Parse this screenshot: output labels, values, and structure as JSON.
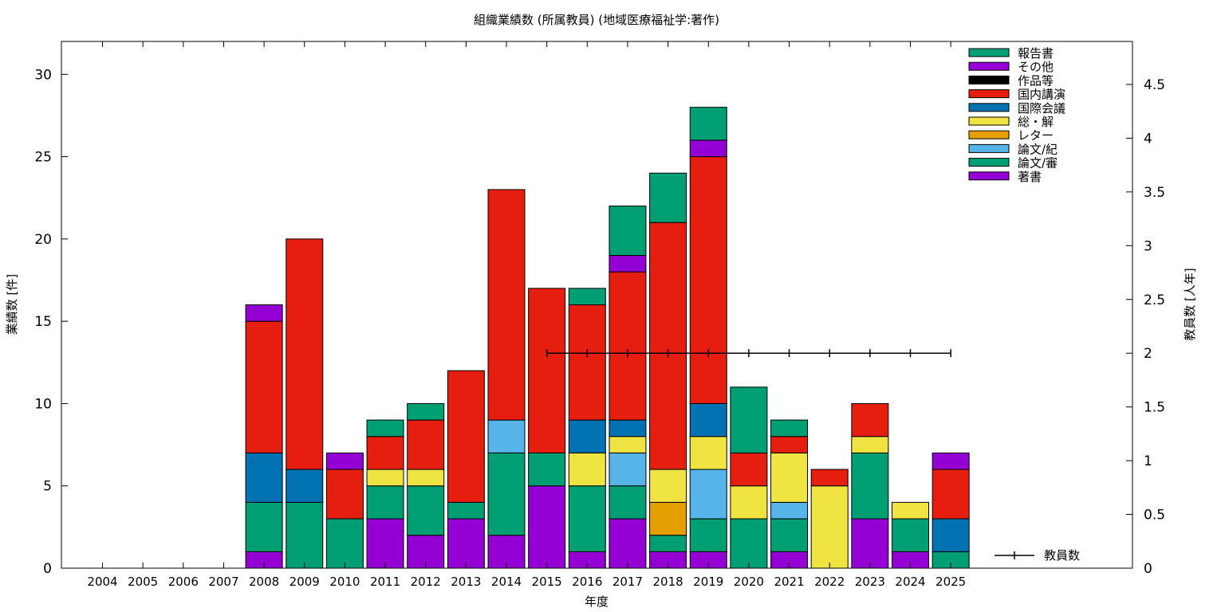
{
  "chart_data": {
    "type": "bar",
    "stacked": true,
    "title": "組織業績数 (所属教員) (地域医療福祉学:著作)",
    "xlabel": "年度",
    "ylabel": "業績数 [件]",
    "y2label": "教員数 [人年]",
    "ylim": [
      0,
      32
    ],
    "y2lim": [
      0,
      4.9
    ],
    "yticks": [
      0,
      5,
      10,
      15,
      20,
      25,
      30
    ],
    "y2ticks": [
      "0",
      "0.5",
      "1",
      "1.5",
      "2",
      "2.5",
      "3",
      "3.5",
      "4",
      "4.5"
    ],
    "grid": false,
    "legend_position": "top-right",
    "categories": [
      "2004",
      "2005",
      "2006",
      "2007",
      "2008",
      "2009",
      "2010",
      "2011",
      "2012",
      "2013",
      "2014",
      "2015",
      "2016",
      "2017",
      "2018",
      "2019",
      "2020",
      "2021",
      "2022",
      "2023",
      "2024",
      "2025"
    ],
    "series": [
      {
        "name": "著書",
        "color": "#9400d3",
        "values": [
          0,
          0,
          0,
          0,
          1,
          0,
          0,
          3,
          2,
          3,
          2,
          5,
          1,
          3,
          1,
          1,
          0,
          1,
          0,
          3,
          1,
          0
        ]
      },
      {
        "name": "論文/審",
        "color": "#009e73",
        "values": [
          0,
          0,
          0,
          0,
          3,
          4,
          3,
          2,
          3,
          1,
          5,
          2,
          4,
          2,
          1,
          2,
          3,
          2,
          0,
          4,
          2,
          1
        ]
      },
      {
        "name": "論文/紀",
        "color": "#56b4e9",
        "values": [
          0,
          0,
          0,
          0,
          0,
          0,
          0,
          0,
          0,
          0,
          2,
          0,
          0,
          2,
          0,
          3,
          0,
          1,
          0,
          0,
          0,
          0
        ]
      },
      {
        "name": "レター",
        "color": "#e69f00",
        "values": [
          0,
          0,
          0,
          0,
          0,
          0,
          0,
          0,
          0,
          0,
          0,
          0,
          0,
          0,
          2,
          0,
          0,
          0,
          0,
          0,
          0,
          0
        ]
      },
      {
        "name": "総・解",
        "color": "#f0e442",
        "values": [
          0,
          0,
          0,
          0,
          0,
          0,
          0,
          1,
          1,
          0,
          0,
          0,
          2,
          1,
          2,
          2,
          2,
          3,
          5,
          1,
          1,
          0
        ]
      },
      {
        "name": "国際会議",
        "color": "#0072b2",
        "values": [
          0,
          0,
          0,
          0,
          3,
          2,
          0,
          0,
          0,
          0,
          0,
          0,
          2,
          1,
          0,
          2,
          0,
          0,
          0,
          0,
          0,
          2
        ]
      },
      {
        "name": "国内講演",
        "color": "#e51e10",
        "values": [
          0,
          0,
          0,
          0,
          8,
          14,
          3,
          2,
          3,
          8,
          14,
          10,
          7,
          9,
          15,
          15,
          2,
          1,
          1,
          2,
          0,
          3
        ]
      },
      {
        "name": "作品等",
        "color": "#000000",
        "values": [
          0,
          0,
          0,
          0,
          0,
          0,
          0,
          0,
          0,
          0,
          0,
          0,
          0,
          0,
          0,
          0,
          0,
          0,
          0,
          0,
          0,
          0
        ]
      },
      {
        "name": "その他",
        "color": "#9400d3",
        "values": [
          0,
          0,
          0,
          0,
          1,
          0,
          1,
          0,
          0,
          0,
          0,
          0,
          0,
          1,
          0,
          1,
          0,
          0,
          0,
          0,
          0,
          1
        ]
      },
      {
        "name": "報告書",
        "color": "#009e73",
        "values": [
          0,
          0,
          0,
          0,
          0,
          0,
          0,
          1,
          1,
          0,
          0,
          0,
          1,
          3,
          3,
          2,
          4,
          1,
          0,
          0,
          0,
          0
        ]
      }
    ],
    "line_series": {
      "name": "教員数",
      "axis": "y2",
      "color": "#000000",
      "values": [
        null,
        null,
        null,
        null,
        null,
        null,
        null,
        null,
        null,
        null,
        null,
        2,
        2,
        2,
        2,
        2,
        2,
        2,
        2,
        2,
        2,
        2
      ]
    }
  }
}
